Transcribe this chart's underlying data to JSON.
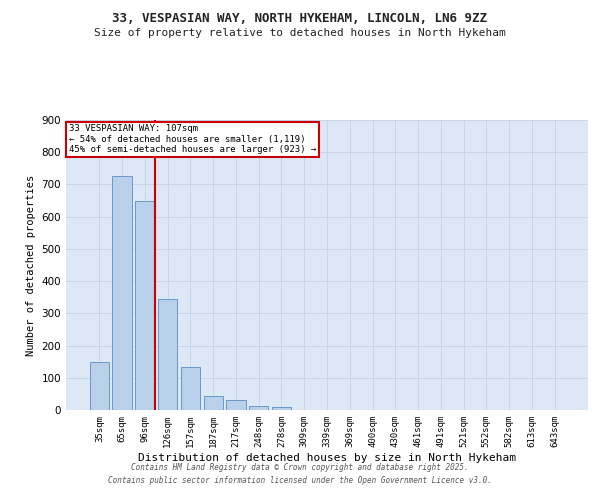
{
  "title1": "33, VESPASIAN WAY, NORTH HYKEHAM, LINCOLN, LN6 9ZZ",
  "title2": "Size of property relative to detached houses in North Hykeham",
  "xlabel": "Distribution of detached houses by size in North Hykeham",
  "ylabel": "Number of detached properties",
  "categories": [
    "35sqm",
    "65sqm",
    "96sqm",
    "126sqm",
    "157sqm",
    "187sqm",
    "217sqm",
    "248sqm",
    "278sqm",
    "309sqm",
    "339sqm",
    "369sqm",
    "400sqm",
    "430sqm",
    "461sqm",
    "491sqm",
    "521sqm",
    "552sqm",
    "582sqm",
    "613sqm",
    "643sqm"
  ],
  "values": [
    150,
    725,
    648,
    343,
    135,
    42,
    32,
    13,
    10,
    0,
    0,
    0,
    0,
    0,
    0,
    0,
    0,
    0,
    0,
    0,
    0
  ],
  "bar_color": "#b8d0ea",
  "bar_edge_color": "#6899cc",
  "red_line_color": "#cc0000",
  "grid_color": "#c8d4e8",
  "bg_color": "#dce8f5",
  "ylim": [
    0,
    900
  ],
  "yticks": [
    0,
    100,
    200,
    300,
    400,
    500,
    600,
    700,
    800,
    900
  ],
  "annotation_title": "33 VESPASIAN WAY: 107sqm",
  "annotation_line1": "← 54% of detached houses are smaller (1,119)",
  "annotation_line2": "45% of semi-detached houses are larger (923) →",
  "annotation_box_color": "#ffffff",
  "annotation_box_edge_color": "#cc0000",
  "footer_line1": "Contains HM Land Registry data © Crown copyright and database right 2025.",
  "footer_line2": "Contains public sector information licensed under the Open Government Licence v3.0."
}
